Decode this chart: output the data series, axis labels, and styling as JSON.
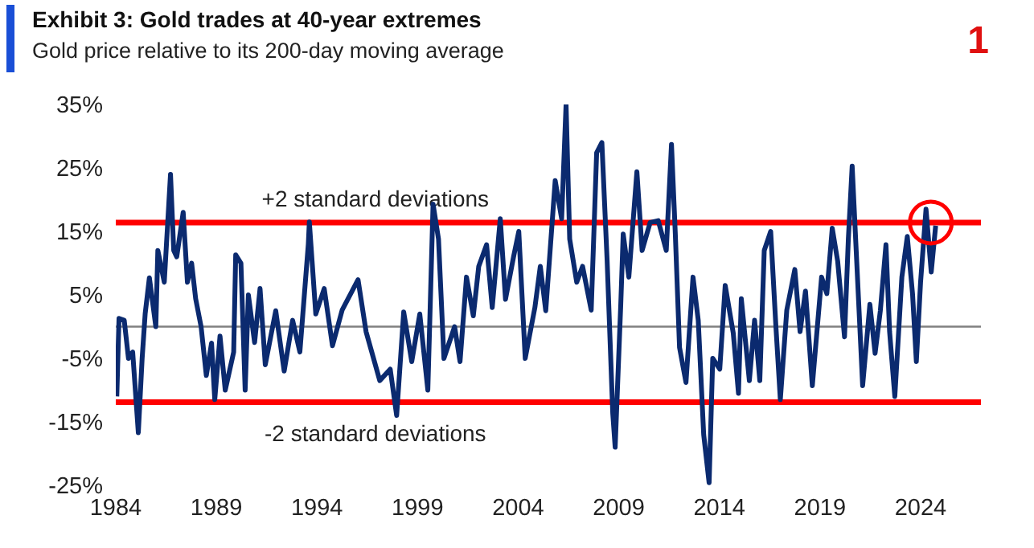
{
  "chart_data": {
    "type": "line",
    "title": "Exhibit 3: Gold trades at 40-year extremes",
    "subtitle": "Gold price relative to its 200-day moving average",
    "annotations": [
      "1"
    ],
    "x": [
      1984.05,
      1984.16,
      1984.42,
      1984.63,
      1984.84,
      1985.12,
      1985.31,
      1985.46,
      1985.67,
      1985.99,
      1986.09,
      1986.41,
      1986.72,
      1986.88,
      1987.03,
      1987.35,
      1987.56,
      1987.77,
      1987.97,
      1988.24,
      1988.5,
      1988.76,
      1988.92,
      1989.18,
      1989.44,
      1989.86,
      1989.96,
      1990.22,
      1990.43,
      1990.59,
      1990.9,
      1991.17,
      1991.43,
      1991.95,
      1992.37,
      1992.79,
      1993.15,
      1993.57,
      1993.62,
      1993.94,
      1994.36,
      1994.77,
      1995.25,
      1996.04,
      1996.44,
      1997.12,
      1997.64,
      1997.96,
      1998.31,
      1998.71,
      1999.11,
      1999.51,
      1999.77,
      2000.04,
      2000.31,
      2000.84,
      2001.11,
      2001.43,
      2001.77,
      2002.04,
      2002.43,
      2002.71,
      2003.11,
      2003.37,
      2003.77,
      2004.03,
      2004.35,
      2004.83,
      2005.1,
      2005.37,
      2005.84,
      2006.16,
      2006.38,
      2006.56,
      2006.91,
      2007.2,
      2007.63,
      2007.9,
      2008.16,
      2008.42,
      2008.7,
      2008.82,
      2009.1,
      2009.22,
      2009.5,
      2009.9,
      2010.16,
      2010.56,
      2010.96,
      2011.36,
      2011.62,
      2011.81,
      2012.02,
      2012.34,
      2012.69,
      2012.95,
      2013.22,
      2013.49,
      2013.67,
      2014.02,
      2014.29,
      2014.69,
      2014.95,
      2015.09,
      2015.49,
      2015.75,
      2016.01,
      2016.23,
      2016.55,
      2016.81,
      2017.03,
      2017.35,
      2017.75,
      2018.01,
      2018.28,
      2018.62,
      2019.08,
      2019.34,
      2019.61,
      2019.88,
      2020.22,
      2020.41,
      2020.6,
      2020.8,
      2021.12,
      2021.48,
      2021.74,
      2022.0,
      2022.28,
      2022.46,
      2022.72,
      2023.07,
      2023.34,
      2023.6,
      2023.79,
      2024.0,
      2024.27,
      2024.53,
      2024.75
    ],
    "series": [
      {
        "color": "#0b2a6f",
        "values": [
          -11,
          1.3,
          1,
          -5,
          -4,
          -16.7,
          -5,
          2,
          7.7,
          0,
          12,
          7,
          24,
          12,
          11,
          18,
          7,
          10,
          4.4,
          0,
          -7.7,
          -2.6,
          -11.5,
          -1.5,
          -10,
          -4,
          11.3,
          10,
          -10,
          5,
          -2.5,
          6,
          -6,
          2.5,
          -7,
          1,
          -4,
          13,
          16.5,
          2,
          6,
          -3,
          2.6,
          7.4,
          -0.8,
          -8.5,
          -6.7,
          -14,
          2.3,
          -5.5,
          2,
          -10,
          19.3,
          13.8,
          -5,
          0,
          -5.5,
          7.8,
          1.7,
          9.5,
          12.9,
          3,
          17,
          4.3,
          11,
          15,
          -5,
          3,
          9.5,
          2.5,
          23,
          17,
          35,
          13.8,
          7,
          9.5,
          2.6,
          27.4,
          29,
          10.5,
          -13.6,
          -19,
          3.6,
          14.6,
          7.8,
          24.4,
          12,
          16.4,
          16.7,
          12,
          28.7,
          14.6,
          -3.3,
          -8.8,
          7.8,
          1,
          -17,
          -24.6,
          -5,
          -6.7,
          6.5,
          -1,
          -10.5,
          4.4,
          -8.5,
          1,
          -8.5,
          12,
          15,
          0,
          -11.5,
          2.6,
          9,
          -0.8,
          5.6,
          -9.3,
          7.8,
          5.2,
          15.5,
          10.3,
          -1.6,
          13.8,
          25.3,
          12,
          -9.3,
          3.5,
          -4.2,
          2.5,
          12.9,
          -0.8,
          -11,
          7.8,
          14.2,
          5.2,
          -5.5,
          7,
          18.5,
          8.6,
          15.9
        ]
      }
    ],
    "xlim": [
      1984,
      2027
    ],
    "xticks": [
      1984,
      1989,
      1994,
      1999,
      2004,
      2009,
      2014,
      2019,
      2024
    ],
    "ylim": [
      -25,
      35
    ],
    "yticks": [
      {
        "value": -25,
        "label": "-25%"
      },
      {
        "value": -15,
        "label": "-15%"
      },
      {
        "value": -5,
        "label": "-5%"
      },
      {
        "value": 5,
        "label": "5%"
      },
      {
        "value": 15,
        "label": "15%"
      },
      {
        "value": 25,
        "label": "25%"
      },
      {
        "value": 35,
        "label": "35%"
      }
    ],
    "ref_lines": [
      {
        "axis": "y",
        "value": 0,
        "color": "#808080"
      },
      {
        "axis": "y",
        "value": 16.4,
        "label": "+2 standard deviations",
        "color": "#ff0000"
      },
      {
        "axis": "y",
        "value": -11.9,
        "label": "-2 standard deviations",
        "color": "#ff0000"
      }
    ],
    "grid": false,
    "legend": false,
    "marker": "none",
    "line_style": "solid"
  }
}
